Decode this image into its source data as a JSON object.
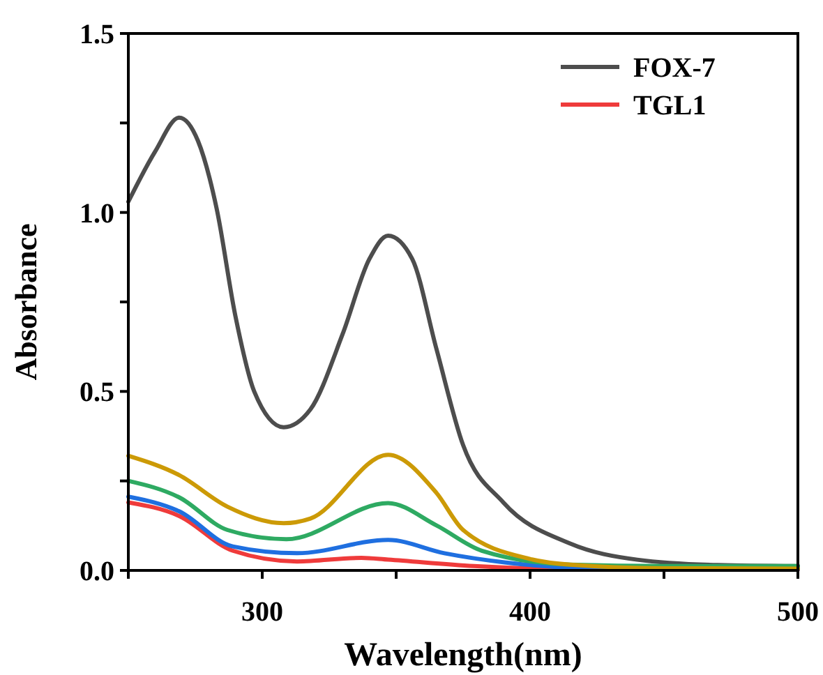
{
  "chart_data": {
    "type": "line",
    "xlabel": "Wavelength(nm)",
    "ylabel": "Absorbance",
    "xlim": [
      250,
      500
    ],
    "ylim": [
      0,
      1.5
    ],
    "xticks": [
      {
        "value": 250,
        "label": null
      },
      300,
      {
        "value": 350,
        "label": null
      },
      400,
      {
        "value": 450,
        "label": null
      },
      500
    ],
    "yticks": [
      {
        "value": 0,
        "label": "0.0"
      },
      {
        "value": 0.25,
        "label": null
      },
      0.5,
      {
        "value": 0.75,
        "label": null
      },
      {
        "value": 1,
        "label": "1.0"
      },
      {
        "value": 1.25,
        "label": null
      },
      1.5
    ],
    "legend": "top right",
    "grid": false,
    "line_style": "solid",
    "series": [
      {
        "name": "FOX-7",
        "color": "#4d4d4d",
        "x": [
          250,
          260,
          269,
          276,
          283,
          290,
          297,
          308,
          318,
          330,
          340,
          347,
          356,
          365,
          375,
          390,
          415,
          440,
          470,
          500
        ],
        "values": [
          1.03,
          1.17,
          1.265,
          1.2,
          1.01,
          0.71,
          0.5,
          0.4,
          0.45,
          0.66,
          0.87,
          0.935,
          0.87,
          0.62,
          0.35,
          0.19,
          0.075,
          0.03,
          0.015,
          0.012
        ]
      },
      {
        "name": "TGL1",
        "color": "#ef3b3b",
        "x": [
          250,
          269,
          289,
          313,
          337,
          347,
          379,
          420,
          500
        ],
        "values": [
          0.19,
          0.152,
          0.055,
          0.025,
          0.035,
          0.03,
          0.012,
          0.003,
          0.002
        ]
      },
      {
        "color": "#1f6fe0",
        "x": [
          250,
          269,
          289,
          313,
          347,
          368,
          391,
          430,
          500
        ],
        "values": [
          0.206,
          0.165,
          0.067,
          0.048,
          0.085,
          0.048,
          0.022,
          0.005,
          0.003
        ]
      },
      {
        "color": "#2eaa62",
        "x": [
          250,
          269,
          287,
          309,
          347,
          365,
          382,
          415,
          450,
          500
        ],
        "values": [
          0.25,
          0.204,
          0.113,
          0.087,
          0.188,
          0.126,
          0.055,
          0.016,
          0.012,
          0.012
        ]
      },
      {
        "color": "#cc9a06",
        "x": [
          250,
          269,
          287,
          308,
          318,
          347,
          365,
          375,
          400,
          415,
          450,
          500
        ],
        "values": [
          0.32,
          0.266,
          0.178,
          0.132,
          0.145,
          0.323,
          0.217,
          0.113,
          0.032,
          0.016,
          0.006,
          0.005
        ]
      }
    ]
  }
}
